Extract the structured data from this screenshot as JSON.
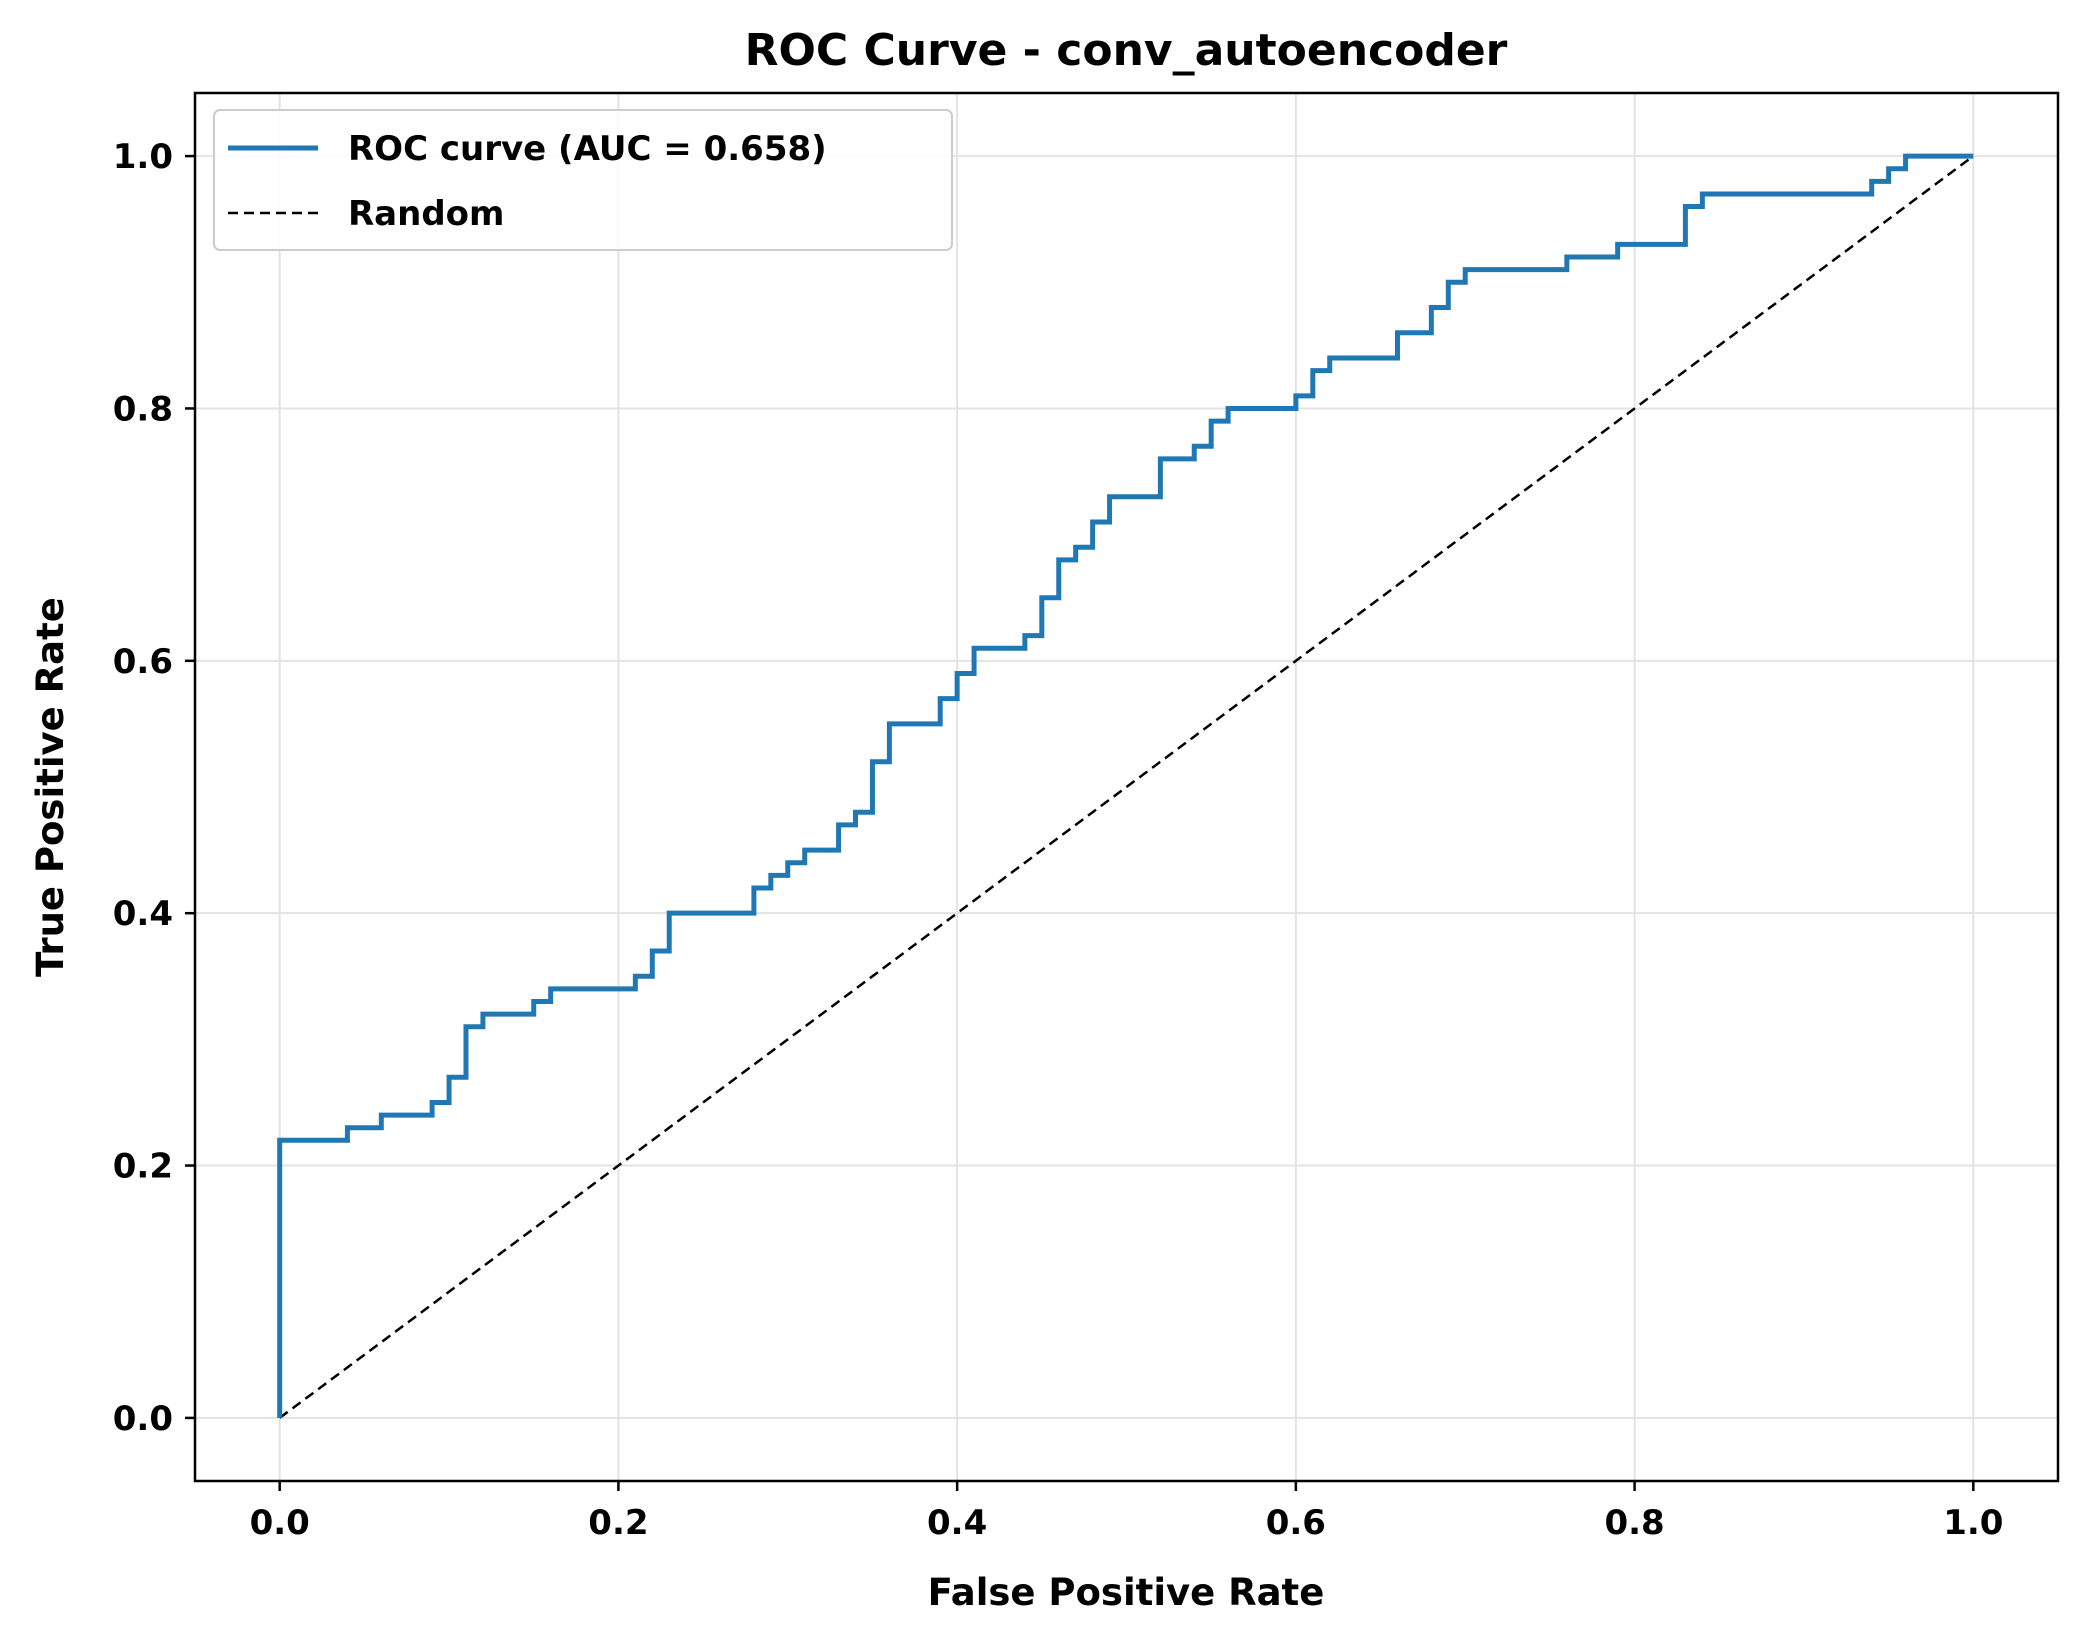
{
  "chart_data": {
    "type": "line",
    "title": "ROC Curve - conv_autoencoder",
    "xlabel": "False Positive Rate",
    "ylabel": "True Positive Rate",
    "xlim": [
      -0.05,
      1.05
    ],
    "ylim": [
      -0.05,
      1.05
    ],
    "xticks": [
      0.0,
      0.2,
      0.4,
      0.6,
      0.8,
      1.0
    ],
    "yticks": [
      0.0,
      0.2,
      0.4,
      0.6,
      0.8,
      1.0
    ],
    "xtick_labels": [
      "0.0",
      "0.2",
      "0.4",
      "0.6",
      "0.8",
      "1.0"
    ],
    "ytick_labels": [
      "0.0",
      "0.2",
      "0.4",
      "0.6",
      "0.8",
      "1.0"
    ],
    "grid": true,
    "legend_position": "top-left",
    "series": [
      {
        "name": "ROC curve (AUC = 0.658)",
        "color": "#1f77b4",
        "style": "solid",
        "x": [
          0.0,
          0.0,
          0.04,
          0.04,
          0.06,
          0.06,
          0.09,
          0.09,
          0.1,
          0.1,
          0.11,
          0.11,
          0.12,
          0.12,
          0.15,
          0.15,
          0.16,
          0.16,
          0.21,
          0.21,
          0.22,
          0.22,
          0.23,
          0.23,
          0.28,
          0.28,
          0.29,
          0.29,
          0.3,
          0.3,
          0.31,
          0.31,
          0.33,
          0.33,
          0.34,
          0.34,
          0.35,
          0.35,
          0.36,
          0.36,
          0.39,
          0.39,
          0.4,
          0.4,
          0.41,
          0.41,
          0.44,
          0.44,
          0.45,
          0.45,
          0.46,
          0.46,
          0.47,
          0.47,
          0.48,
          0.48,
          0.49,
          0.49,
          0.52,
          0.52,
          0.54,
          0.54,
          0.55,
          0.55,
          0.56,
          0.56,
          0.6,
          0.6,
          0.61,
          0.61,
          0.62,
          0.62,
          0.66,
          0.66,
          0.68,
          0.68,
          0.69,
          0.69,
          0.7,
          0.7,
          0.76,
          0.76,
          0.79,
          0.79,
          0.83,
          0.83,
          0.84,
          0.84,
          0.94,
          0.94,
          0.95,
          0.95,
          0.96,
          0.96,
          1.0
        ],
        "y": [
          0.0,
          0.22,
          0.22,
          0.23,
          0.23,
          0.24,
          0.24,
          0.25,
          0.25,
          0.27,
          0.27,
          0.31,
          0.31,
          0.32,
          0.32,
          0.33,
          0.33,
          0.34,
          0.34,
          0.35,
          0.35,
          0.37,
          0.37,
          0.4,
          0.4,
          0.42,
          0.42,
          0.43,
          0.43,
          0.44,
          0.44,
          0.45,
          0.45,
          0.47,
          0.47,
          0.48,
          0.48,
          0.52,
          0.52,
          0.55,
          0.55,
          0.57,
          0.57,
          0.59,
          0.59,
          0.61,
          0.61,
          0.62,
          0.62,
          0.65,
          0.65,
          0.68,
          0.68,
          0.69,
          0.69,
          0.71,
          0.71,
          0.73,
          0.73,
          0.76,
          0.76,
          0.77,
          0.77,
          0.79,
          0.79,
          0.8,
          0.8,
          0.81,
          0.81,
          0.83,
          0.83,
          0.84,
          0.84,
          0.86,
          0.86,
          0.88,
          0.88,
          0.9,
          0.9,
          0.91,
          0.91,
          0.92,
          0.92,
          0.93,
          0.93,
          0.96,
          0.96,
          0.97,
          0.97,
          0.98,
          0.98,
          0.99,
          0.99,
          1.0,
          1.0
        ]
      },
      {
        "name": "Random",
        "color": "#000000",
        "style": "dashed",
        "x": [
          0.0,
          1.0
        ],
        "y": [
          0.0,
          1.0
        ]
      }
    ]
  }
}
